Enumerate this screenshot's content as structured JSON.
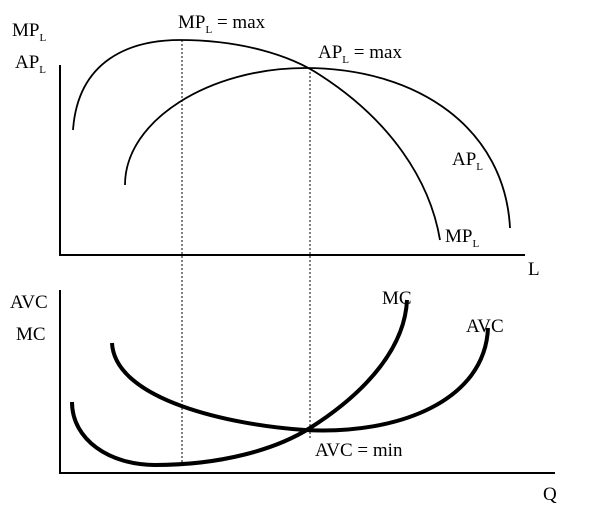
{
  "top_panel": {
    "y_axis_label": [
      {
        "main": "MP",
        "sub": "L"
      },
      {
        "main": "AP",
        "sub": "L"
      }
    ],
    "x_axis_label": "L",
    "annotations": {
      "mp_max": {
        "main": "MP",
        "sub": "L",
        "rest": " = max"
      },
      "ap_max": {
        "main": "AP",
        "sub": "L",
        "rest": " = max"
      }
    },
    "curve_labels": {
      "ap": {
        "main": "AP",
        "sub": "L"
      },
      "mp": {
        "main": "MP",
        "sub": "L"
      }
    }
  },
  "bottom_panel": {
    "y_axis_label": [
      "AVC",
      "MC"
    ],
    "x_axis_label": "Q",
    "curve_labels": {
      "mc": "MC",
      "avc": "AVC"
    },
    "annotation": "AVC = min"
  }
}
